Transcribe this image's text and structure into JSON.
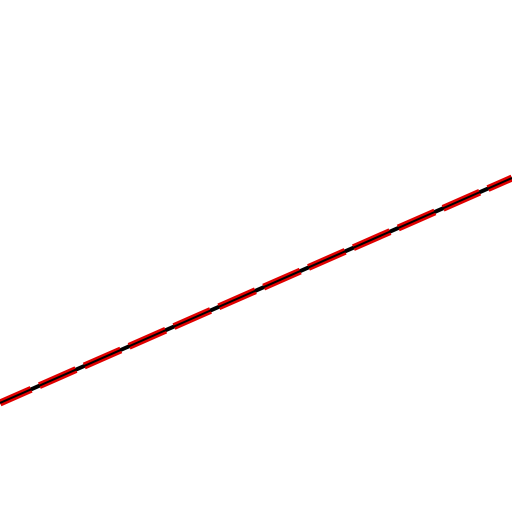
{
  "canvas": {
    "background_color": "#ffffff"
  },
  "stroke": {
    "dash_color": "#e00000",
    "core_color": "#000000"
  }
}
